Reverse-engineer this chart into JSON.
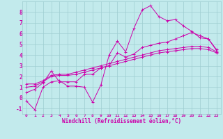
{
  "xlabel": "Windchill (Refroidissement éolien,°C)",
  "bg_color": "#c2eaec",
  "grid_color": "#9ecdd0",
  "line_color": "#cc00aa",
  "xlim": [
    -0.5,
    23.5
  ],
  "ylim": [
    -1.5,
    9.0
  ],
  "xticks": [
    0,
    1,
    2,
    3,
    4,
    5,
    6,
    7,
    8,
    9,
    10,
    11,
    12,
    13,
    14,
    15,
    16,
    17,
    18,
    19,
    20,
    21,
    22,
    23
  ],
  "yticks": [
    -1,
    0,
    1,
    2,
    3,
    4,
    5,
    6,
    7,
    8
  ],
  "series": [
    [
      0,
      -0.3,
      1,
      -1.1,
      2,
      1.0,
      3,
      1.5,
      4,
      1.6,
      5,
      1.1,
      6,
      1.1,
      7,
      1.0,
      8,
      -0.4,
      9,
      1.2,
      10,
      4.0,
      11,
      5.3,
      12,
      4.3,
      13,
      6.5,
      14,
      8.2,
      15,
      8.6,
      16,
      7.6,
      17,
      7.2,
      18,
      7.3,
      19,
      6.7,
      20,
      6.2,
      21,
      5.6,
      22,
      5.5,
      23,
      4.5
    ],
    [
      0,
      0.5,
      1,
      0.8,
      2,
      1.4,
      3,
      2.5,
      4,
      1.5,
      5,
      1.5,
      6,
      1.5,
      7,
      2.2,
      8,
      2.2,
      9,
      2.8,
      10,
      3.0,
      11,
      4.2,
      12,
      3.8,
      13,
      4.1,
      14,
      4.7,
      15,
      4.9,
      16,
      5.1,
      17,
      5.2,
      18,
      5.5,
      19,
      5.8,
      20,
      6.1,
      21,
      5.8,
      22,
      5.5,
      23,
      4.4
    ],
    [
      0,
      1.0,
      1,
      1.1,
      2,
      1.5,
      3,
      2.0,
      4,
      2.1,
      5,
      2.1,
      6,
      2.2,
      7,
      2.4,
      8,
      2.6,
      9,
      2.8,
      10,
      3.0,
      11,
      3.2,
      12,
      3.4,
      13,
      3.6,
      14,
      3.8,
      15,
      4.0,
      16,
      4.2,
      17,
      4.3,
      18,
      4.4,
      19,
      4.5,
      20,
      4.6,
      21,
      4.6,
      22,
      4.5,
      23,
      4.2
    ],
    [
      0,
      1.3,
      1,
      1.3,
      2,
      1.6,
      3,
      2.1,
      4,
      2.2,
      5,
      2.2,
      6,
      2.4,
      7,
      2.6,
      8,
      2.8,
      9,
      3.0,
      10,
      3.2,
      11,
      3.4,
      12,
      3.6,
      13,
      3.8,
      14,
      4.0,
      15,
      4.2,
      16,
      4.4,
      17,
      4.5,
      18,
      4.6,
      19,
      4.7,
      20,
      4.8,
      21,
      4.8,
      22,
      4.7,
      23,
      4.3
    ]
  ]
}
